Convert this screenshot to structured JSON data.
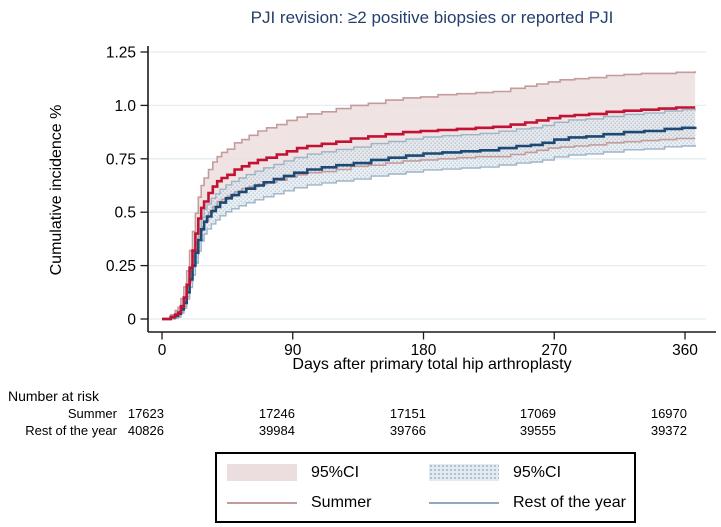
{
  "title": "PJI revision: ≥2 positive biopsies or reported PJI",
  "y_axis": {
    "label": "Cumulative incidence %",
    "ticks": [
      {
        "value": 0,
        "label": "0"
      },
      {
        "value": 0.25,
        "label": "0.25"
      },
      {
        "value": 0.5,
        "label": "0.5"
      },
      {
        "value": 0.75,
        "label": "0.75"
      },
      {
        "value": 1.0,
        "label": "1.0"
      },
      {
        "value": 1.25,
        "label": "1.25"
      }
    ]
  },
  "x_axis": {
    "label": "Days after primary total hip arthroplasty",
    "ticks": [
      {
        "value": 0,
        "label": "0"
      },
      {
        "value": 90,
        "label": "90"
      },
      {
        "value": 180,
        "label": "180"
      },
      {
        "value": 270,
        "label": "270"
      },
      {
        "value": 360,
        "label": "360"
      }
    ]
  },
  "risk_table": {
    "heading": "Number at risk",
    "rows": [
      {
        "label": "Summer",
        "values": [
          "17623",
          "17246",
          "17151",
          "17069",
          "16970"
        ]
      },
      {
        "label": "Rest of the year",
        "values": [
          "40826",
          "39984",
          "39766",
          "39555",
          "39372"
        ]
      }
    ]
  },
  "legend": {
    "items": [
      {
        "type": "area",
        "series": "summer",
        "label": "95%CI"
      },
      {
        "type": "area",
        "series": "rest",
        "label": "95%CI"
      },
      {
        "type": "line",
        "series": "summer",
        "label": "Summer"
      },
      {
        "type": "line",
        "series": "rest",
        "label": "Rest of the year"
      }
    ]
  },
  "colors": {
    "title_text": "#233f6e",
    "summer_line": "#c11335",
    "rest_line": "#1d4a75",
    "summer_band_fill": "#ecdede",
    "summer_band_edge": "#c49c9c",
    "rest_band_fill": "#e3eaf0",
    "rest_band_dot": "#aabfd0",
    "rest_band_edge": "#9fb3c6",
    "grid": "#e2eef0",
    "axis": "#1a1a1a"
  },
  "chart_data": {
    "type": "line",
    "subtype": "step-cumulative-incidence",
    "title": "PJI revision: ≥2 positive biopsies or reported PJI",
    "xlabel": "Days after primary total hip arthroplasty",
    "ylabel": "Cumulative incidence %",
    "xlim": [
      0,
      380
    ],
    "ylim": [
      0,
      1.3
    ],
    "x_ticks": [
      0,
      90,
      180,
      270,
      360
    ],
    "y_ticks": [
      0,
      0.25,
      0.5,
      0.75,
      1.0,
      1.25
    ],
    "grid": "horizontal",
    "legend_position": "bottom-center",
    "series": [
      {
        "name": "Summer",
        "ci_label": "95%CI",
        "color": "#c11335",
        "band_fill": "#ecdede",
        "band_edge": "#c49c9c",
        "x": [
          0,
          6,
          9,
          11,
          13,
          15,
          17,
          19,
          21,
          23,
          25,
          27,
          29,
          32,
          35,
          38,
          41,
          45,
          50,
          55,
          60,
          66,
          72,
          79,
          86,
          93,
          100,
          110,
          120,
          130,
          142,
          154,
          166,
          178,
          190,
          203,
          216,
          228,
          240,
          250,
          258,
          266,
          274,
          284,
          294,
          306,
          318,
          330,
          342,
          354,
          367
        ],
        "y": [
          0,
          0.01,
          0.02,
          0.03,
          0.06,
          0.1,
          0.16,
          0.24,
          0.32,
          0.4,
          0.47,
          0.52,
          0.55,
          0.59,
          0.62,
          0.645,
          0.66,
          0.675,
          0.7,
          0.715,
          0.73,
          0.745,
          0.755,
          0.77,
          0.785,
          0.8,
          0.81,
          0.82,
          0.83,
          0.845,
          0.855,
          0.865,
          0.875,
          0.88,
          0.885,
          0.89,
          0.895,
          0.9,
          0.91,
          0.92,
          0.93,
          0.94,
          0.95,
          0.955,
          0.96,
          0.97,
          0.975,
          0.98,
          0.985,
          0.99,
          0.99
        ],
        "ci_upper": [
          0,
          0.02,
          0.04,
          0.055,
          0.095,
          0.15,
          0.225,
          0.32,
          0.41,
          0.495,
          0.57,
          0.625,
          0.66,
          0.7,
          0.735,
          0.76,
          0.78,
          0.795,
          0.825,
          0.84,
          0.86,
          0.88,
          0.895,
          0.91,
          0.93,
          0.945,
          0.96,
          0.97,
          0.985,
          1.0,
          1.01,
          1.025,
          1.035,
          1.04,
          1.05,
          1.055,
          1.06,
          1.065,
          1.08,
          1.09,
          1.1,
          1.11,
          1.12,
          1.125,
          1.13,
          1.14,
          1.145,
          1.15,
          1.15,
          1.155,
          1.16
        ],
        "ci_lower": [
          0,
          0,
          0.005,
          0.01,
          0.03,
          0.06,
          0.105,
          0.175,
          0.245,
          0.32,
          0.385,
          0.43,
          0.46,
          0.5,
          0.525,
          0.55,
          0.56,
          0.575,
          0.595,
          0.61,
          0.62,
          0.63,
          0.64,
          0.65,
          0.665,
          0.675,
          0.685,
          0.69,
          0.7,
          0.715,
          0.72,
          0.73,
          0.74,
          0.745,
          0.75,
          0.755,
          0.76,
          0.76,
          0.77,
          0.78,
          0.79,
          0.8,
          0.805,
          0.81,
          0.815,
          0.825,
          0.83,
          0.835,
          0.84,
          0.845,
          0.845
        ]
      },
      {
        "name": "Rest of the year",
        "ci_label": "95%CI",
        "color": "#1d4a75",
        "band_fill": "#e3eaf0",
        "band_edge": "#9fb3c6",
        "x": [
          0,
          6,
          9,
          11,
          13,
          15,
          17,
          19,
          21,
          23,
          25,
          27,
          29,
          31,
          34,
          37,
          40,
          44,
          48,
          53,
          58,
          64,
          70,
          77,
          84,
          91,
          100,
          110,
          120,
          132,
          144,
          156,
          168,
          180,
          193,
          206,
          219,
          232,
          244,
          254,
          262,
          270,
          280,
          292,
          304,
          318,
          332,
          346,
          358,
          367
        ],
        "y": [
          0,
          0.008,
          0.015,
          0.025,
          0.045,
          0.075,
          0.125,
          0.185,
          0.25,
          0.31,
          0.37,
          0.42,
          0.455,
          0.48,
          0.505,
          0.525,
          0.545,
          0.565,
          0.58,
          0.595,
          0.61,
          0.625,
          0.64,
          0.655,
          0.67,
          0.685,
          0.7,
          0.71,
          0.72,
          0.73,
          0.745,
          0.755,
          0.765,
          0.775,
          0.78,
          0.785,
          0.79,
          0.8,
          0.81,
          0.815,
          0.825,
          0.84,
          0.85,
          0.855,
          0.865,
          0.875,
          0.88,
          0.89,
          0.895,
          0.9
        ],
        "ci_upper": [
          0,
          0.013,
          0.023,
          0.037,
          0.063,
          0.1,
          0.155,
          0.223,
          0.294,
          0.358,
          0.422,
          0.475,
          0.512,
          0.538,
          0.565,
          0.586,
          0.607,
          0.628,
          0.644,
          0.66,
          0.676,
          0.692,
          0.708,
          0.724,
          0.74,
          0.756,
          0.772,
          0.783,
          0.794,
          0.805,
          0.821,
          0.831,
          0.842,
          0.852,
          0.858,
          0.863,
          0.869,
          0.879,
          0.89,
          0.895,
          0.906,
          0.921,
          0.932,
          0.937,
          0.948,
          0.958,
          0.964,
          0.974,
          0.98,
          0.985
        ],
        "ci_lower": [
          0,
          0.003,
          0.007,
          0.013,
          0.027,
          0.05,
          0.093,
          0.147,
          0.206,
          0.262,
          0.318,
          0.365,
          0.398,
          0.422,
          0.445,
          0.464,
          0.483,
          0.502,
          0.516,
          0.53,
          0.544,
          0.558,
          0.572,
          0.586,
          0.6,
          0.614,
          0.628,
          0.637,
          0.646,
          0.655,
          0.669,
          0.679,
          0.688,
          0.698,
          0.702,
          0.707,
          0.711,
          0.721,
          0.73,
          0.735,
          0.744,
          0.759,
          0.768,
          0.773,
          0.782,
          0.792,
          0.796,
          0.806,
          0.81,
          0.815
        ]
      }
    ]
  }
}
